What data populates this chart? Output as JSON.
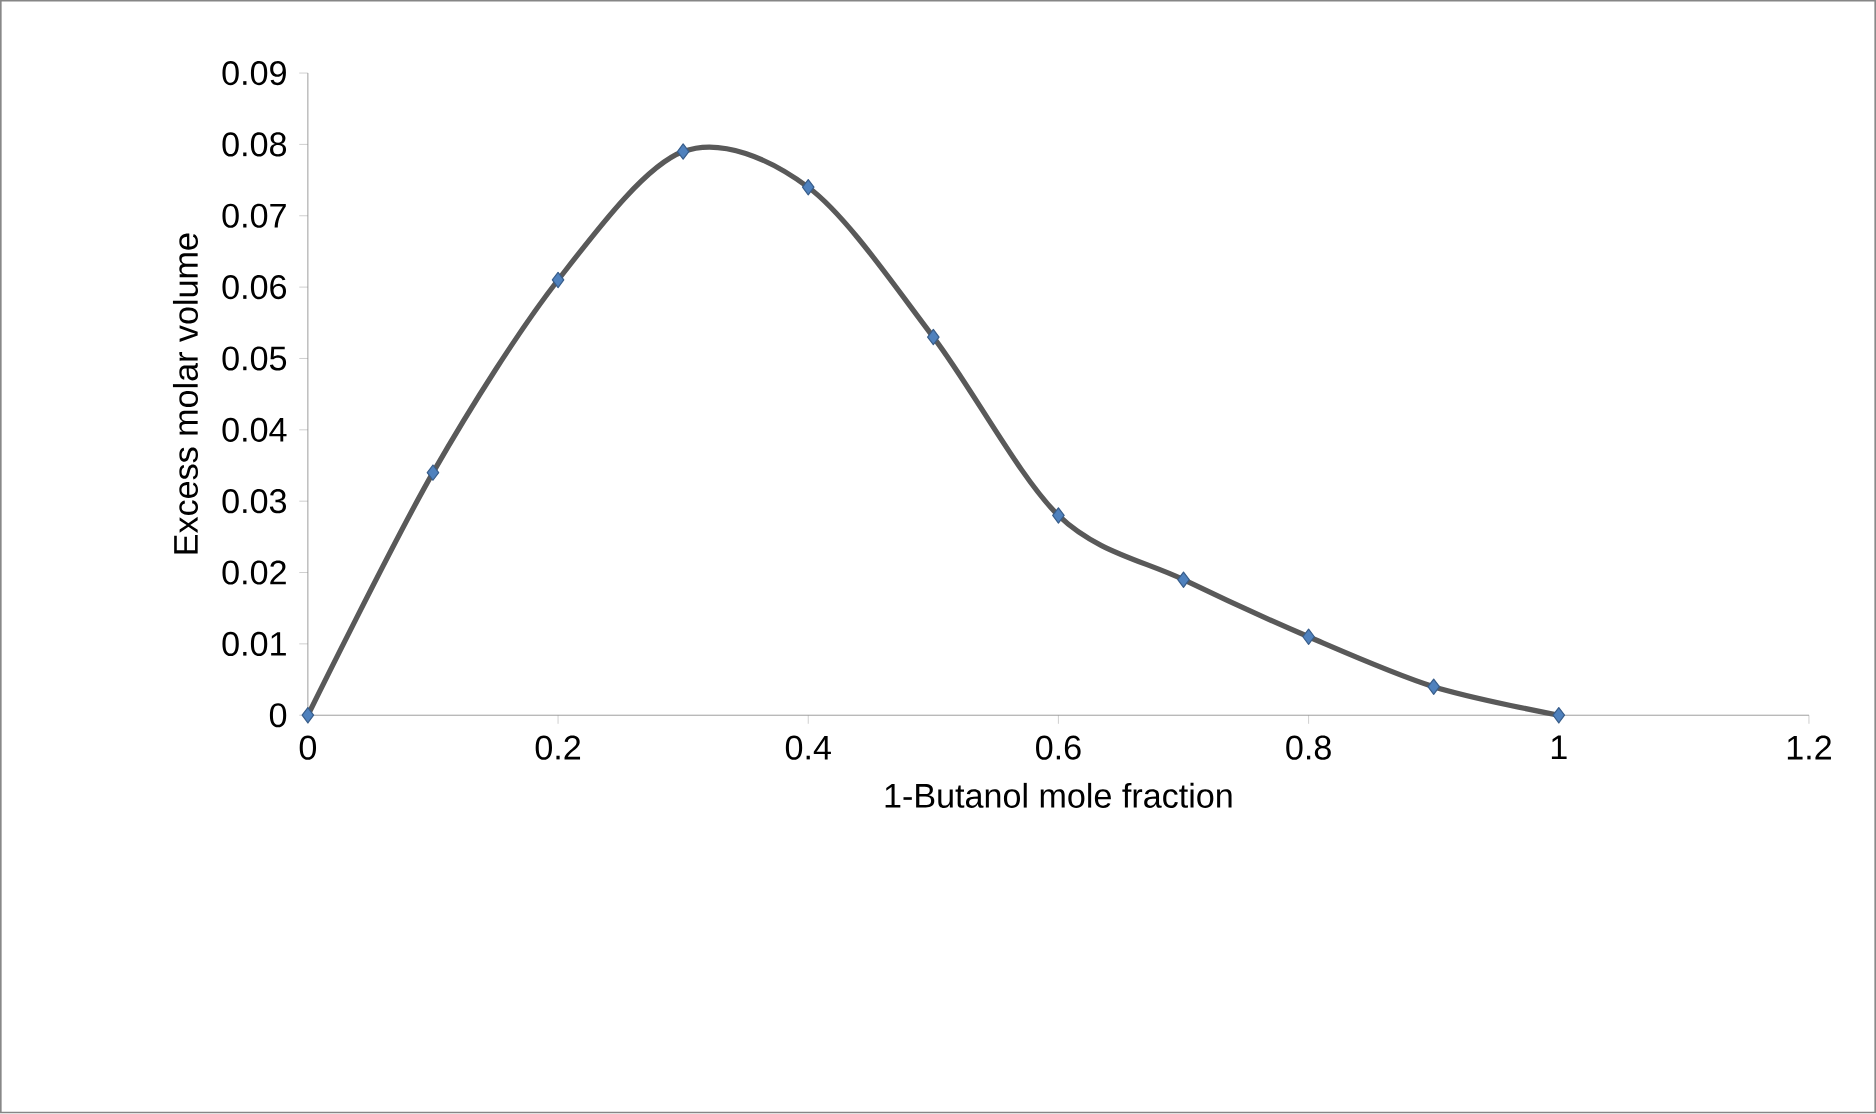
{
  "chart_data": {
    "type": "line",
    "xlabel": "1-Butanol mole fraction",
    "ylabel": "Excess molar volume",
    "x": [
      0,
      0.1,
      0.2,
      0.3,
      0.4,
      0.5,
      0.6,
      0.7,
      0.8,
      0.9,
      1
    ],
    "series": [
      {
        "color": "#595959",
        "values": [
          0,
          0.034,
          0.061,
          0.079,
          0.074,
          0.053,
          0.028,
          0.019,
          0.011,
          0.004,
          0
        ]
      }
    ],
    "xlim": [
      0,
      1.2
    ],
    "xticks": [
      0,
      0.2,
      0.4,
      0.6,
      0.8,
      1,
      1.2
    ],
    "ylim": [
      0,
      0.09
    ],
    "yticks": [
      0,
      0.01,
      0.02,
      0.03,
      0.04,
      0.05,
      0.06,
      0.07,
      0.08,
      0.09
    ],
    "marker": "diamond",
    "line_style": "solid"
  }
}
